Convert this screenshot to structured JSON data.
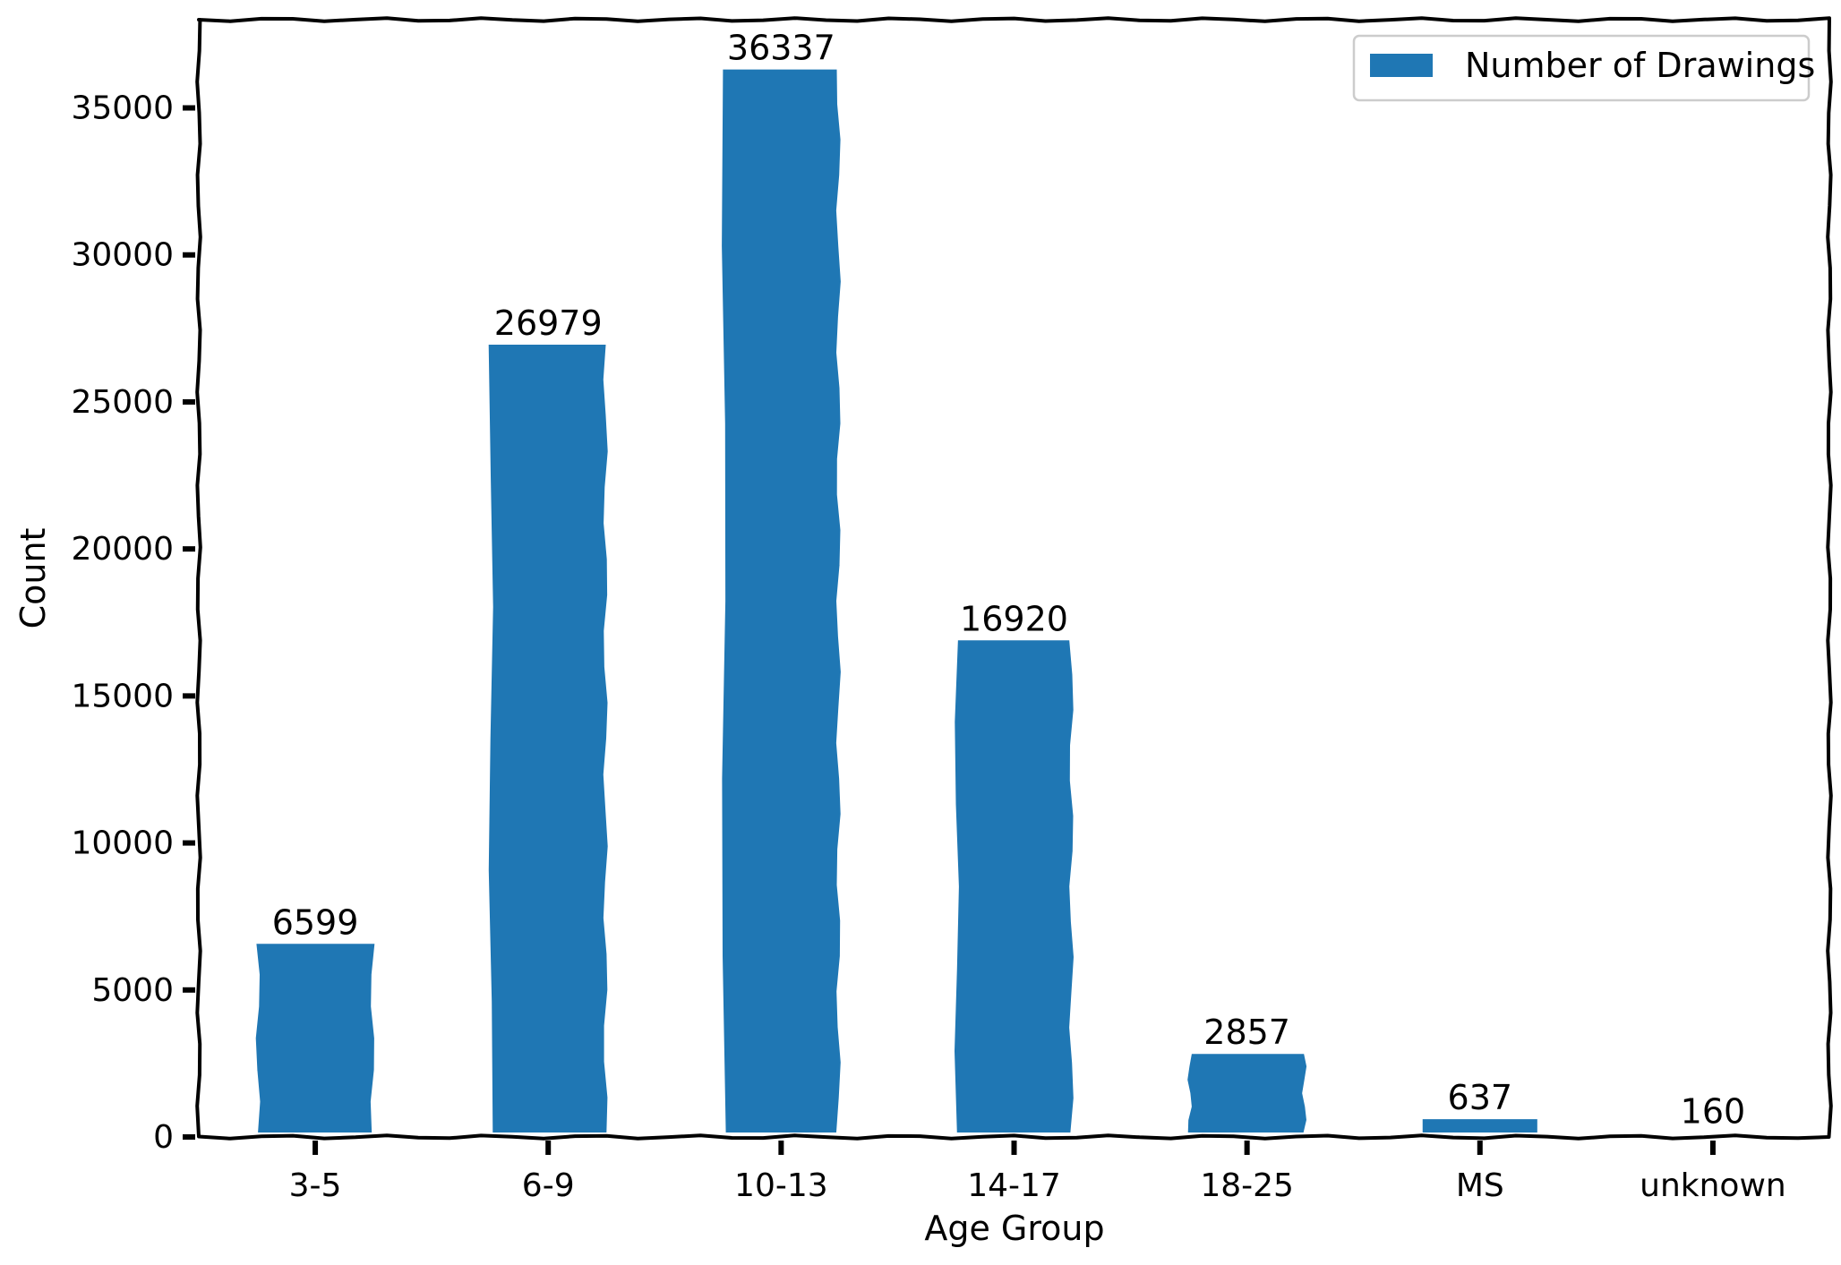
{
  "chart_data": {
    "type": "bar",
    "title": "",
    "xlabel": "Age Group",
    "ylabel": "Count",
    "categories": [
      "3-5",
      "6-9",
      "10-13",
      "14-17",
      "18-25",
      "MS",
      "unknown"
    ],
    "series": [
      {
        "name": "Number of Drawings",
        "values": [
          6599,
          26979,
          36337,
          16920,
          2857,
          637,
          160
        ]
      }
    ],
    "value_labels": [
      "6599",
      "26979",
      "36337",
      "16920",
      "2857",
      "637",
      "160"
    ],
    "ylim": [
      0,
      38000
    ],
    "yticks": [
      0,
      5000,
      10000,
      15000,
      20000,
      25000,
      30000,
      35000
    ],
    "ytick_labels": [
      "0",
      "5000",
      "10000",
      "15000",
      "20000",
      "25000",
      "30000",
      "35000"
    ],
    "legend": {
      "position": "top-right",
      "entries": [
        "Number of Drawings"
      ]
    },
    "grid": false,
    "colors": {
      "bar": "#1f77b4",
      "axis": "#000000",
      "legend_border": "#cccccc"
    }
  }
}
